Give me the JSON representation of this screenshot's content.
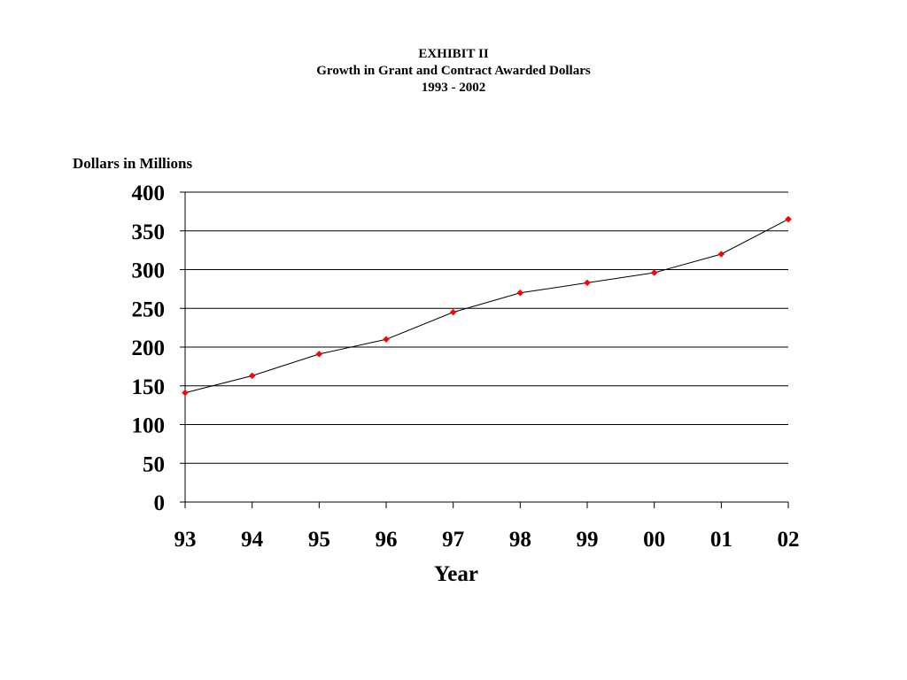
{
  "chart_data": {
    "type": "line",
    "title": "EXHIBIT II",
    "subtitle": "Growth in Grant and Contract Awarded Dollars",
    "subtitle2": "1993 - 2002",
    "ylabel": "Dollars in Millions",
    "xlabel": "Year",
    "categories": [
      "93",
      "94",
      "95",
      "96",
      "97",
      "98",
      "99",
      "00",
      "01",
      "02"
    ],
    "values": [
      141,
      163,
      191,
      210,
      245,
      270,
      283,
      296,
      320,
      365
    ],
    "ylim": [
      0,
      400
    ],
    "yticks": [
      "0",
      "50",
      "100",
      "150",
      "200",
      "250",
      "300",
      "350",
      "400"
    ],
    "grid": true,
    "line_color": "#000000",
    "marker_color": "#ff0000"
  }
}
